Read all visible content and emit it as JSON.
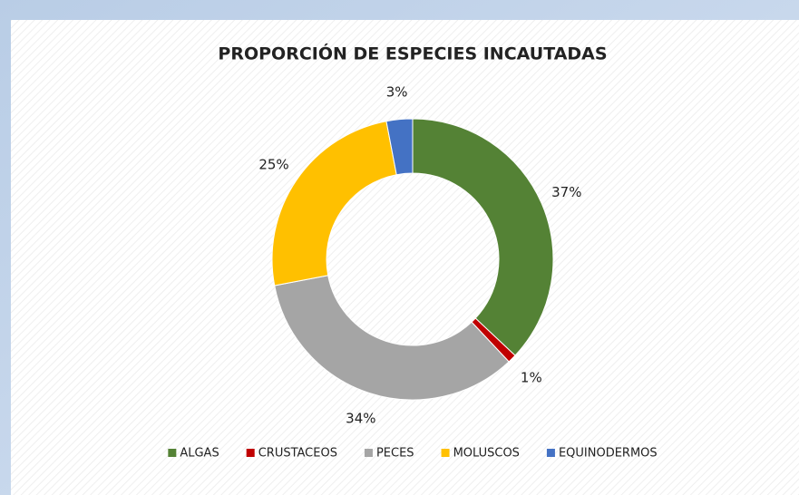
{
  "chart_data": {
    "type": "donut",
    "title": "PROPORCIÓN DE ESPECIES INCAUTADAS",
    "categories": [
      "ALGAS",
      "CRUSTACEOS",
      "PECES",
      "MOLUSCOS",
      "EQUINODERMOS"
    ],
    "values": [
      37,
      1,
      34,
      25,
      3
    ],
    "value_labels": [
      "37%",
      "1%",
      "34%",
      "25%",
      "3%"
    ],
    "colors": [
      "#548235",
      "#c00000",
      "#a5a5a5",
      "#ffc000",
      "#4472c4"
    ],
    "legend": "bottom"
  }
}
